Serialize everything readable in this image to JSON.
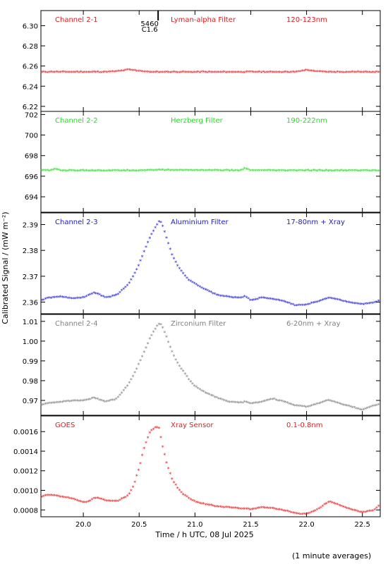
{
  "figure": {
    "xlabel": "Time / h UTC, 08 Jul 2025",
    "ylabel": "Calibrated Signal / (mW m⁻²)",
    "footnote": "(1 minute averages)",
    "xlim": [
      19.62,
      22.66
    ],
    "xticks": [
      20.0,
      20.5,
      21.0,
      21.5,
      22.0,
      22.5
    ],
    "xtick_labels": [
      "20.0",
      "20.5",
      "21.0",
      "21.5",
      "22.0",
      "22.5"
    ],
    "event_marker": {
      "time": 20.67,
      "labels": [
        "5460",
        "C1.6"
      ]
    }
  },
  "chart_data": [
    {
      "type": "scatter",
      "channel": "Channel 2-1",
      "filter": "Lyman-alpha Filter",
      "band": "120-123nm",
      "color": "#e41a1c",
      "ylim": [
        6.215,
        6.315
      ],
      "yticks": [
        6.22,
        6.24,
        6.26,
        6.28,
        6.3
      ],
      "ytick_labels": [
        "6.22",
        "6.24",
        "6.26",
        "6.28",
        "6.30"
      ],
      "x": [
        19.62,
        20.2,
        20.3,
        20.4,
        20.5,
        20.6,
        21.9,
        22.0,
        22.1,
        22.2,
        22.66
      ],
      "y": [
        6.2535,
        6.2535,
        6.254,
        6.2558,
        6.2545,
        6.2535,
        6.2535,
        6.2555,
        6.254,
        6.2535,
        6.2535
      ]
    },
    {
      "type": "scatter",
      "channel": "Channel 2-2",
      "filter": "Herzberg Filter",
      "band": "190-222nm",
      "color": "#22dd22",
      "ylim": [
        692.5,
        702.3
      ],
      "yticks": [
        694,
        696,
        698,
        700,
        702
      ],
      "ytick_labels": [
        "694",
        "696",
        "698",
        "700",
        "702"
      ],
      "x": [
        19.62,
        19.7,
        19.75,
        19.8,
        20.5,
        20.6,
        21.4,
        21.45,
        21.5,
        22.66
      ],
      "y": [
        696.5,
        696.5,
        696.65,
        696.5,
        696.5,
        696.55,
        696.5,
        696.7,
        696.5,
        696.5
      ]
    },
    {
      "type": "scatter",
      "channel": "Channel 2-3",
      "filter": "Aluminium Filter",
      "band": "17-80nm + Xray",
      "color": "#1a1acc",
      "ylim": [
        2.3555,
        2.3945
      ],
      "yticks": [
        2.36,
        2.37,
        2.38,
        2.39
      ],
      "ytick_labels": [
        "2.36",
        "2.37",
        "2.38",
        "2.39"
      ],
      "x": [
        19.62,
        19.7,
        19.8,
        19.9,
        20.0,
        20.1,
        20.2,
        20.3,
        20.4,
        20.45,
        20.5,
        20.55,
        20.6,
        20.65,
        20.68,
        20.7,
        20.72,
        20.75,
        20.8,
        20.85,
        20.9,
        20.95,
        21.0,
        21.05,
        21.1,
        21.2,
        21.3,
        21.4,
        21.45,
        21.5,
        21.6,
        21.7,
        21.8,
        21.9,
        22.0,
        22.1,
        22.2,
        22.3,
        22.4,
        22.5,
        22.6,
        22.66
      ],
      "y": [
        2.3605,
        2.3615,
        2.3618,
        2.3612,
        2.3615,
        2.3635,
        2.3615,
        2.3625,
        2.3665,
        2.37,
        2.3745,
        2.38,
        2.385,
        2.389,
        2.391,
        2.3905,
        2.388,
        2.384,
        2.3775,
        2.3735,
        2.3705,
        2.368,
        2.367,
        2.3655,
        2.3645,
        2.3625,
        2.3618,
        2.3615,
        2.362,
        2.3605,
        2.3615,
        2.361,
        2.36,
        2.3585,
        2.3588,
        2.36,
        2.3615,
        2.3605,
        2.3595,
        2.359,
        2.3595,
        2.3605
      ]
    },
    {
      "type": "scatter",
      "channel": "Channel 2-4",
      "filter": "Zirconium Filter",
      "band": "6-20nm + Xray",
      "color": "#808080",
      "ylim": [
        0.9625,
        1.0135
      ],
      "yticks": [
        0.97,
        0.98,
        0.99,
        1.0,
        1.01
      ],
      "ytick_labels": [
        "0.97",
        "0.98",
        "0.99",
        "1.00",
        "1.01"
      ],
      "x": [
        19.62,
        19.7,
        19.8,
        19.9,
        20.0,
        20.1,
        20.2,
        20.3,
        20.4,
        20.45,
        20.5,
        20.55,
        20.6,
        20.65,
        20.68,
        20.7,
        20.72,
        20.75,
        20.8,
        20.85,
        20.9,
        20.95,
        21.0,
        21.05,
        21.1,
        21.2,
        21.3,
        21.4,
        21.45,
        21.5,
        21.6,
        21.7,
        21.8,
        21.9,
        22.0,
        22.1,
        22.2,
        22.3,
        22.4,
        22.5,
        22.6,
        22.66
      ],
      "y": [
        0.9675,
        0.9685,
        0.969,
        0.9695,
        0.9695,
        0.971,
        0.969,
        0.9705,
        0.9775,
        0.9825,
        0.9885,
        0.995,
        1.0015,
        1.0065,
        1.0085,
        1.008,
        1.0055,
        1.001,
        0.9935,
        0.988,
        0.984,
        0.98,
        0.977,
        0.975,
        0.9735,
        0.971,
        0.969,
        0.9685,
        0.969,
        0.968,
        0.969,
        0.9705,
        0.969,
        0.967,
        0.9665,
        0.968,
        0.97,
        0.968,
        0.9665,
        0.965,
        0.967,
        0.968
      ]
    },
    {
      "type": "scatter",
      "channel": "GOES",
      "filter": "Xray Sensor",
      "band": "0.1-0.8nm",
      "color": "#e41a1c",
      "ylim": [
        0.00073,
        0.00176
      ],
      "yticks": [
        0.0008,
        0.001,
        0.0012,
        0.0014,
        0.0016
      ],
      "ytick_labels": [
        "0.0008",
        "0.0010",
        "0.0012",
        "0.0014",
        "0.0016"
      ],
      "x": [
        19.62,
        19.7,
        19.8,
        19.9,
        20.0,
        20.05,
        20.1,
        20.15,
        20.2,
        20.3,
        20.4,
        20.45,
        20.5,
        20.55,
        20.6,
        20.65,
        20.68,
        20.7,
        20.75,
        20.8,
        20.85,
        20.9,
        20.95,
        21.0,
        21.1,
        21.2,
        21.3,
        21.4,
        21.5,
        21.6,
        21.7,
        21.8,
        21.9,
        22.0,
        22.1,
        22.2,
        22.3,
        22.4,
        22.5,
        22.6,
        22.66
      ],
      "y": [
        0.00093,
        0.00095,
        0.00093,
        0.00091,
        0.00087,
        0.00088,
        0.00092,
        0.00091,
        0.00089,
        0.00088,
        0.00094,
        0.00104,
        0.00122,
        0.00145,
        0.0016,
        0.00164,
        0.00163,
        0.0015,
        0.00125,
        0.0011,
        0.00101,
        0.00095,
        0.00091,
        0.00088,
        0.00085,
        0.00083,
        0.00082,
        0.00081,
        0.0008,
        0.00082,
        0.00081,
        0.00079,
        0.00076,
        0.00075,
        0.0008,
        0.00088,
        0.00084,
        0.0008,
        0.00077,
        0.00079,
        0.00085
      ]
    }
  ]
}
